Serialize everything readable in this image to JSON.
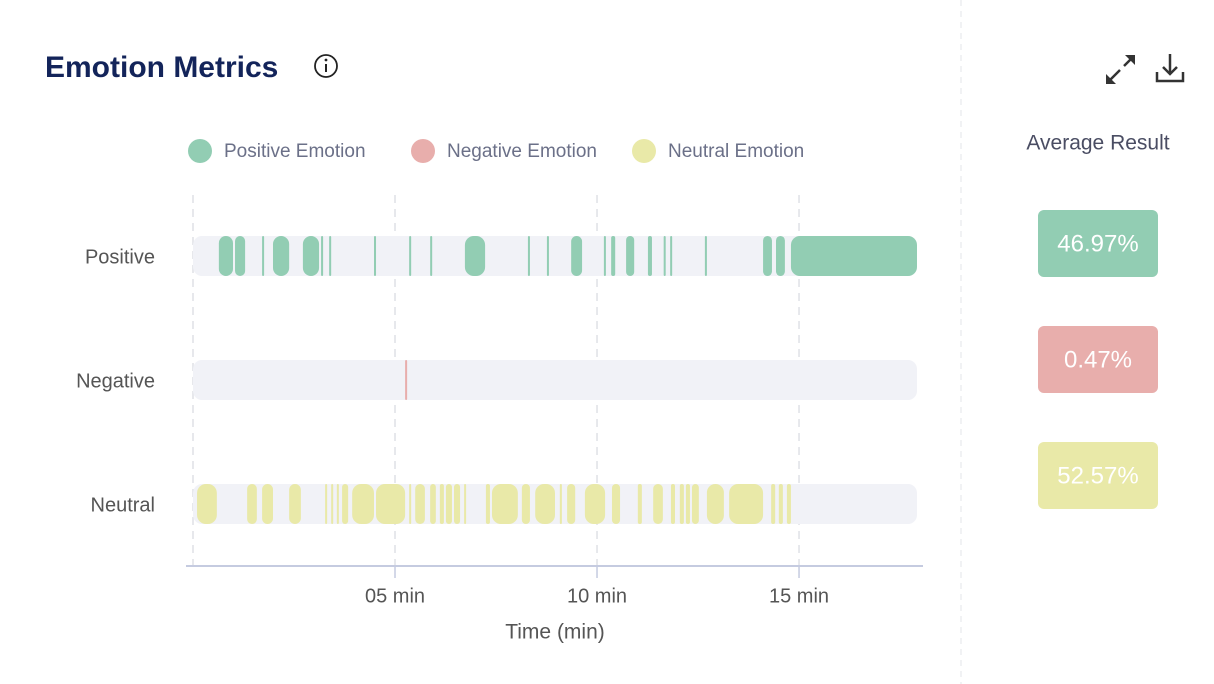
{
  "chart_data": {
    "type": "timeline",
    "title": "Emotion Metrics",
    "x_label": "Time (min)",
    "xlim": [
      0,
      17.92
    ],
    "xticks": [
      {
        "value": 5,
        "label": "05 min"
      },
      {
        "value": 10,
        "label": "10 min"
      },
      {
        "value": 15,
        "label": "15 min"
      }
    ],
    "grid": true,
    "series": [
      {
        "name": "Positive Emotion",
        "row_label": "Positive",
        "color": "#92cdb3",
        "segments": [
          [
            0.64,
            0.99
          ],
          [
            1.04,
            1.29
          ],
          [
            1.71,
            1.76
          ],
          [
            1.98,
            2.38
          ],
          [
            2.72,
            3.12
          ],
          [
            3.17,
            3.22
          ],
          [
            3.37,
            3.42
          ],
          [
            4.48,
            4.53
          ],
          [
            5.35,
            5.4
          ],
          [
            5.87,
            5.92
          ],
          [
            6.73,
            7.23
          ],
          [
            8.29,
            8.34
          ],
          [
            8.76,
            8.81
          ],
          [
            9.36,
            9.63
          ],
          [
            10.17,
            10.22
          ],
          [
            10.35,
            10.45
          ],
          [
            10.72,
            10.92
          ],
          [
            11.26,
            11.36
          ],
          [
            11.65,
            11.7
          ],
          [
            11.81,
            11.86
          ],
          [
            12.67,
            12.72
          ],
          [
            14.11,
            14.33
          ],
          [
            14.43,
            14.65
          ],
          [
            14.8,
            17.92
          ]
        ]
      },
      {
        "name": "Negative Emotion",
        "row_label": "Negative",
        "color": "#e8aeac",
        "segments": [
          [
            5.25,
            5.3
          ]
        ]
      },
      {
        "name": "Neutral Emotion",
        "row_label": "Neutral",
        "color": "#e9e9a8",
        "segments": [
          [
            0.1,
            0.59
          ],
          [
            1.34,
            1.58
          ],
          [
            1.71,
            1.98
          ],
          [
            2.38,
            2.67
          ],
          [
            3.27,
            3.32
          ],
          [
            3.42,
            3.47
          ],
          [
            3.56,
            3.61
          ],
          [
            3.69,
            3.84
          ],
          [
            3.94,
            4.48
          ],
          [
            4.53,
            5.25
          ],
          [
            5.35,
            5.4
          ],
          [
            5.5,
            5.74
          ],
          [
            5.87,
            6.01
          ],
          [
            6.11,
            6.21
          ],
          [
            6.26,
            6.41
          ],
          [
            6.46,
            6.61
          ],
          [
            6.71,
            6.76
          ],
          [
            7.25,
            7.35
          ],
          [
            7.4,
            8.04
          ],
          [
            8.14,
            8.34
          ],
          [
            8.47,
            8.96
          ],
          [
            9.08,
            9.13
          ],
          [
            9.26,
            9.46
          ],
          [
            9.7,
            10.2
          ],
          [
            10.37,
            10.57
          ],
          [
            11.01,
            11.11
          ],
          [
            11.39,
            11.63
          ],
          [
            11.83,
            11.93
          ],
          [
            12.05,
            12.15
          ],
          [
            12.2,
            12.3
          ],
          [
            12.35,
            12.52
          ],
          [
            12.72,
            13.14
          ],
          [
            13.27,
            14.11
          ],
          [
            14.31,
            14.41
          ],
          [
            14.5,
            14.6
          ],
          [
            14.7,
            14.8
          ]
        ]
      }
    ]
  },
  "average_result": {
    "title": "Average Result",
    "values": [
      46.97,
      0.47,
      52.57
    ],
    "value_labels": [
      "46.97%",
      "0.47%",
      "52.57%"
    ]
  }
}
